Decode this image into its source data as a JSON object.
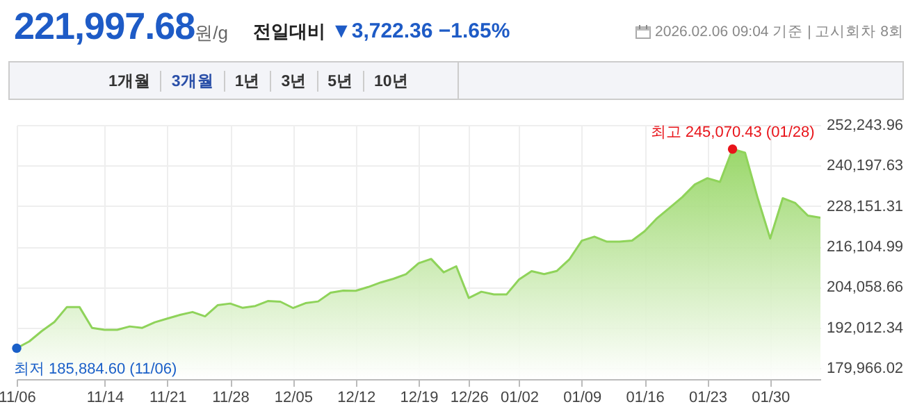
{
  "chart_data": {
    "type": "area",
    "title": "221,997.68원/g",
    "subtitle": "전일대비 ▼3,722.36 −1.65%",
    "annotations": [
      "2026.02.06 09:04 기준 | 고시회차 8회",
      "1개월",
      "3개월",
      "1년",
      "3년",
      "5년",
      "10년",
      {
        "text": "최고 245,070.43 (01/28)",
        "y": 245070.43
      },
      {
        "text": "최저 185,884.60 (11/06)",
        "x": "11/06",
        "y": 185884.6
      }
    ],
    "categories": [
      "11/06",
      null,
      null,
      null,
      null,
      null,
      null,
      "11/14",
      null,
      null,
      null,
      null,
      "11/21",
      null,
      null,
      null,
      null,
      "11/28",
      null,
      null,
      null,
      null,
      "12/05",
      null,
      null,
      null,
      null,
      "12/12",
      null,
      null,
      null,
      null,
      "12/19",
      null,
      null,
      null,
      "12/26",
      null,
      null,
      null,
      "01/02",
      null,
      null,
      null,
      null,
      "01/09",
      null,
      null,
      null,
      null,
      "01/16",
      null,
      null,
      null,
      null,
      "01/23",
      null,
      null,
      null,
      null,
      "01/30",
      null,
      null,
      null,
      null
    ],
    "series": [
      {
        "color": "#8fd35a",
        "values": [
          185884.6,
          187900,
          190990,
          193680,
          198140,
          198140,
          191940,
          191370,
          191370,
          192360,
          191940,
          193600,
          194710,
          195780,
          196650,
          195370,
          198680,
          199170,
          197890,
          198430,
          199910,
          199710,
          197850,
          199290,
          199790,
          202390,
          203010,
          202970,
          204090,
          205450,
          206520,
          207890,
          211150,
          212430,
          208460,
          210240,
          200820,
          202680,
          201900,
          201860,
          206320,
          208790,
          207930,
          208840,
          212260,
          217840,
          219040,
          217550,
          217550,
          217880,
          220650,
          224570,
          227670,
          230810,
          234570,
          236420,
          235310,
          245070.43,
          243980,
          230560,
          218500,
          230480,
          229030,
          225310,
          224690
        ]
      },
      {
        "type": "scatter",
        "color": "#e8141a",
        "marker": "circle",
        "values": [
          null,
          null,
          null,
          null,
          null,
          null,
          null,
          null,
          null,
          null,
          null,
          null,
          null,
          null,
          null,
          null,
          null,
          null,
          null,
          null,
          null,
          null,
          null,
          null,
          null,
          null,
          null,
          null,
          null,
          null,
          null,
          null,
          null,
          null,
          null,
          null,
          null,
          null,
          null,
          null,
          null,
          null,
          null,
          null,
          null,
          null,
          null,
          null,
          null,
          null,
          null,
          null,
          null,
          null,
          null,
          null,
          null,
          245070.43,
          null,
          null,
          null,
          null,
          null,
          null,
          null
        ]
      },
      {
        "type": "scatter",
        "color": "#1a5fc8",
        "marker": "circle",
        "values": [
          185884.6,
          null,
          null,
          null,
          null,
          null,
          null,
          null,
          null,
          null,
          null,
          null,
          null,
          null,
          null,
          null,
          null,
          null,
          null,
          null,
          null,
          null,
          null,
          null,
          null,
          null,
          null,
          null,
          null,
          null,
          null,
          null,
          null,
          null,
          null,
          null,
          null,
          null,
          null,
          null,
          null,
          null,
          null,
          null,
          null,
          null,
          null,
          null,
          null,
          null,
          null,
          null,
          null,
          null,
          null,
          null,
          null,
          null,
          null,
          null,
          null,
          null,
          null,
          null,
          null
        ]
      }
    ],
    "ylim": [
      176700,
      252243.96
    ],
    "yticks": [
      {
        "value": 179966.02,
        "label": "179,966.02"
      },
      {
        "value": 192012.34,
        "label": "192,012.34"
      },
      {
        "value": 204058.66,
        "label": "204,058.66"
      },
      {
        "value": 216104.99,
        "label": "216,104.99"
      },
      {
        "value": 228151.31,
        "label": "228,151.31"
      },
      {
        "value": 240197.63,
        "label": "240,197.63"
      },
      {
        "value": 252243.96,
        "label": "252,243.96"
      }
    ],
    "grid": true,
    "line_style": "solid"
  }
}
